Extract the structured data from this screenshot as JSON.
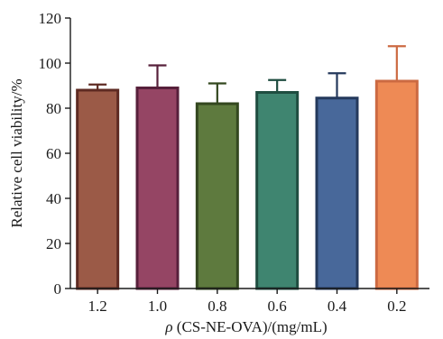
{
  "chart_data": {
    "type": "bar",
    "title": "",
    "xlabel": {
      "symbol": "ρ",
      "text": " (CS-NE-OVA)/(mg/mL)"
    },
    "ylabel": "Relative cell viability/%",
    "categories": [
      "1.2",
      "1.0",
      "0.8",
      "0.6",
      "0.4",
      "0.2"
    ],
    "values": [
      88,
      89,
      82,
      87,
      84.5,
      92
    ],
    "errors": [
      2.5,
      10,
      9,
      5.5,
      11,
      15.5
    ],
    "ylim": [
      0,
      120
    ],
    "yticks": [
      0,
      20,
      40,
      60,
      80,
      100,
      120
    ],
    "grid": false,
    "bar_colors": [
      {
        "fill": "#9b5a47",
        "edge": "#5e2a22"
      },
      {
        "fill": "#954564",
        "edge": "#57203b"
      },
      {
        "fill": "#5e7a3e",
        "edge": "#33471f"
      },
      {
        "fill": "#3f8570",
        "edge": "#1f4d40"
      },
      {
        "fill": "#48689a",
        "edge": "#24395c"
      },
      {
        "fill": "#ee8a55",
        "edge": "#cc6a42"
      }
    ]
  }
}
